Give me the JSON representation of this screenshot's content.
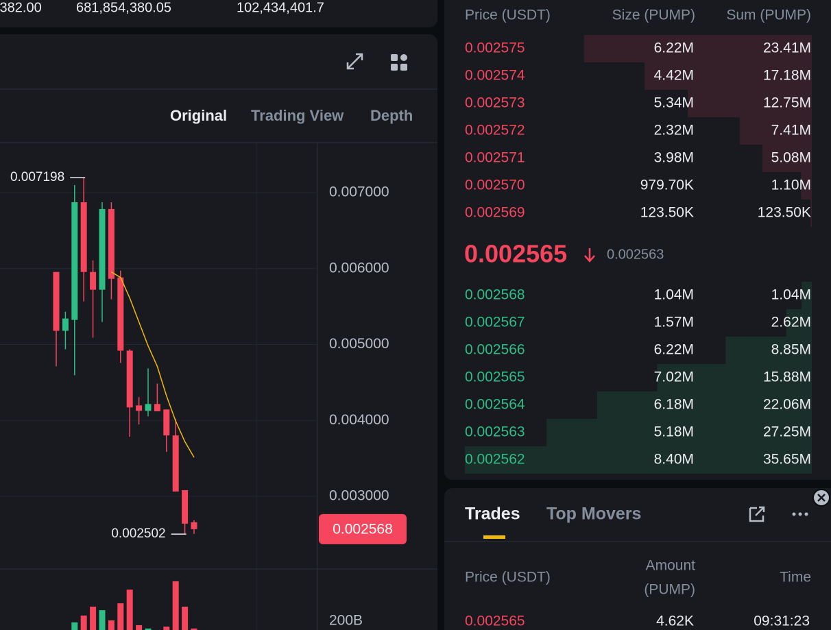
{
  "ticker_stats": [
    ",382.00",
    "681,854,380.05",
    "102,434,401.7"
  ],
  "chart": {
    "tabs": [
      "Original",
      "Trading View",
      "Depth"
    ],
    "price_ticks": [
      {
        "value": 0.007,
        "label": "0.007000"
      },
      {
        "value": 0.006,
        "label": "0.006000"
      },
      {
        "value": 0.005,
        "label": "0.005000"
      },
      {
        "value": 0.004,
        "label": "0.004000"
      },
      {
        "value": 0.003,
        "label": "0.003000"
      }
    ],
    "current_price": {
      "value": 0.002568,
      "label": "0.002568"
    },
    "annotations": [
      {
        "value": 0.007198,
        "label": "0.007198"
      },
      {
        "value": 0.002502,
        "label": "0.002502"
      }
    ],
    "candles": [
      {
        "open": 0.005955,
        "high": 0.005955,
        "low": 0.004712,
        "close": 0.00518
      },
      {
        "open": 0.00518,
        "high": 0.005432,
        "low": 0.004937,
        "close": 0.005342
      },
      {
        "open": 0.005324,
        "high": 0.007099,
        "low": 0.004595,
        "close": 0.006874
      },
      {
        "open": 0.006874,
        "high": 0.007198,
        "low": 0.005568,
        "close": 0.005955
      },
      {
        "open": 0.005955,
        "high": 0.006108,
        "low": 0.00509,
        "close": 0.005721
      },
      {
        "open": 0.005721,
        "high": 0.006874,
        "low": 0.005297,
        "close": 0.006784
      },
      {
        "open": 0.006784,
        "high": 0.006874,
        "low": 0.005595,
        "close": 0.005865
      },
      {
        "open": 0.005883,
        "high": 0.005973,
        "low": 0.004757,
        "close": 0.004919
      },
      {
        "open": 0.004919,
        "high": 0.004937,
        "low": 0.003784,
        "close": 0.004171
      },
      {
        "open": 0.004198,
        "high": 0.004306,
        "low": 0.003946,
        "close": 0.004126
      },
      {
        "open": 0.004126,
        "high": 0.004685,
        "low": 0.004054,
        "close": 0.004216
      },
      {
        "open": 0.004216,
        "high": 0.004486,
        "low": 0.004126,
        "close": 0.00412
      },
      {
        "open": 0.004144,
        "high": 0.004144,
        "low": 0.003586,
        "close": 0.003802
      },
      {
        "open": 0.003802,
        "high": 0.004018,
        "low": 0.003063,
        "close": 0.003063
      },
      {
        "open": 0.003081,
        "high": 0.003081,
        "low": 0.002502,
        "close": 0.00264
      },
      {
        "open": 0.002658,
        "high": 0.002685,
        "low": 0.002505,
        "close": 0.002568
      }
    ],
    "moving_average": [
      null,
      null,
      null,
      null,
      null,
      null,
      0.005955,
      0.005883,
      0.005613,
      0.005297,
      0.004982,
      0.004712,
      0.004324,
      0.003991,
      0.003721,
      0.003514
    ],
    "volume_ticks": [
      {
        "value": 200,
        "label": "200B"
      }
    ],
    "volume": [
      150,
      140,
      193,
      230,
      278,
      259,
      204,
      296,
      370,
      178,
      160,
      150,
      170,
      415,
      278,
      160
    ]
  },
  "order_book": {
    "columns": [
      "Price (USDT)",
      "Size (PUMP)",
      "Sum (PUMP)"
    ],
    "asks": [
      {
        "price": "0.002575",
        "size": "6.22M",
        "sum": {
          "value": 23410000,
          "label": "23.41M"
        }
      },
      {
        "price": "0.002574",
        "size": "4.42M",
        "sum": {
          "value": 17180000,
          "label": "17.18M"
        }
      },
      {
        "price": "0.002573",
        "size": "5.34M",
        "sum": {
          "value": 12750000,
          "label": "12.75M"
        }
      },
      {
        "price": "0.002572",
        "size": "2.32M",
        "sum": {
          "value": 7410000,
          "label": "7.41M"
        }
      },
      {
        "price": "0.002571",
        "size": "3.98M",
        "sum": {
          "value": 5080000,
          "label": "5.08M"
        }
      },
      {
        "price": "0.002570",
        "size": "979.70K",
        "sum": {
          "value": 1100000,
          "label": "1.10M"
        }
      },
      {
        "price": "0.002569",
        "size": "123.50K",
        "sum": {
          "value": 123500,
          "label": "123.50K"
        }
      }
    ],
    "last_price": "0.002565",
    "mark_price": "0.002563",
    "bids": [
      {
        "price": "0.002568",
        "size": "1.04M",
        "sum": {
          "value": 1040000,
          "label": "1.04M"
        }
      },
      {
        "price": "0.002567",
        "size": "1.57M",
        "sum": {
          "value": 2620000,
          "label": "2.62M"
        }
      },
      {
        "price": "0.002566",
        "size": "6.22M",
        "sum": {
          "value": 8850000,
          "label": "8.85M"
        }
      },
      {
        "price": "0.002565",
        "size": "7.02M",
        "sum": {
          "value": 15880000,
          "label": "15.88M"
        }
      },
      {
        "price": "0.002564",
        "size": "6.18M",
        "sum": {
          "value": 22060000,
          "label": "22.06M"
        }
      },
      {
        "price": "0.002563",
        "size": "5.18M",
        "sum": {
          "value": 27250000,
          "label": "27.25M"
        }
      },
      {
        "price": "0.002562",
        "size": "8.40M",
        "sum": {
          "value": 35650000,
          "label": "35.65M"
        }
      }
    ]
  },
  "trades": {
    "tabs": [
      "Trades",
      "Top Movers"
    ],
    "price_header": "Price (USDT)",
    "amount_header": [
      "Amount",
      "(PUMP)"
    ],
    "time_header": "Time",
    "rows": [
      {
        "price": "0.002565",
        "amount": "4.62K",
        "time": "09:31:23"
      }
    ]
  }
}
